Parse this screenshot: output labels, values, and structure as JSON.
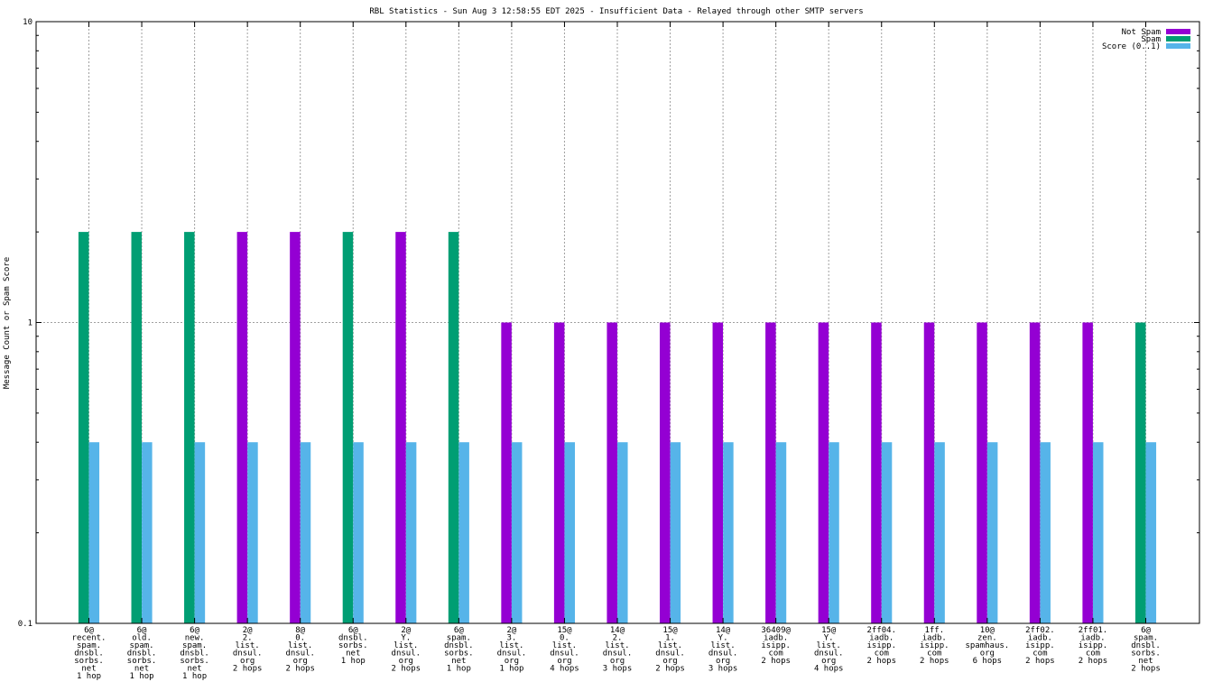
{
  "chart_data": {
    "type": "bar",
    "title": "RBL Statistics - Sun Aug  3 12:58:55 EDT 2025 - Insufficient Data - Relayed through other SMTP servers",
    "xlabel": "",
    "ylabel": "Message Count or Spam Score",
    "y_scale": "log",
    "ylim": [
      0.1,
      10
    ],
    "yticks": [
      "0.1",
      "1",
      "10"
    ],
    "grid": true,
    "legend_position": "top-right",
    "categories": [
      [
        "6@",
        "recent.",
        "spam.",
        "dnsbl.",
        "sorbs.",
        "net",
        "1 hop"
      ],
      [
        "6@",
        "old.",
        "spam.",
        "dnsbl.",
        "sorbs.",
        "net",
        "1 hop"
      ],
      [
        "6@",
        "new.",
        "spam.",
        "dnsbl.",
        "sorbs.",
        "net",
        "1 hop"
      ],
      [
        "2@",
        "2.",
        "list.",
        "dnsul.",
        "org",
        "2 hops"
      ],
      [
        "8@",
        "0.",
        "list.",
        "dnsul.",
        "org",
        "2 hops"
      ],
      [
        "6@",
        "dnsbl.",
        "sorbs.",
        "net",
        "1 hop"
      ],
      [
        "2@",
        "Y.",
        "list.",
        "dnsul.",
        "org",
        "2 hops"
      ],
      [
        "6@",
        "spam.",
        "dnsbl.",
        "sorbs.",
        "net",
        "1 hop"
      ],
      [
        "2@",
        "3.",
        "list.",
        "dnsul.",
        "org",
        "1 hop"
      ],
      [
        "15@",
        "0.",
        "list.",
        "dnsul.",
        "org",
        "4 hops"
      ],
      [
        "14@",
        "2.",
        "list.",
        "dnsul.",
        "org",
        "3 hops"
      ],
      [
        "15@",
        "1.",
        "list.",
        "dnsul.",
        "org",
        "2 hops"
      ],
      [
        "14@",
        "Y.",
        "list.",
        "dnsul.",
        "org",
        "3 hops"
      ],
      [
        "36409@",
        "iadb.",
        "isipp.",
        "com",
        "2 hops"
      ],
      [
        "15@",
        "Y.",
        "list.",
        "dnsul.",
        "org",
        "4 hops"
      ],
      [
        "2ff04.",
        "iadb.",
        "isipp.",
        "com",
        "2 hops"
      ],
      [
        "1ff.",
        "iadb.",
        "isipp.",
        "com",
        "2 hops"
      ],
      [
        "10@",
        "zen.",
        "spamhaus.",
        "org",
        "6 hops"
      ],
      [
        "2ff02.",
        "iadb.",
        "isipp.",
        "com",
        "2 hops"
      ],
      [
        "2ff01.",
        "iadb.",
        "isipp.",
        "com",
        "2 hops"
      ],
      [
        "6@",
        "spam.",
        "dnsbl.",
        "sorbs.",
        "net",
        "2 hops"
      ]
    ],
    "series": [
      {
        "name": "Not Spam",
        "color": "#9400d3",
        "values": [
          null,
          null,
          null,
          2,
          2,
          null,
          2,
          null,
          1,
          1,
          1,
          1,
          1,
          1,
          1,
          1,
          1,
          1,
          1,
          1,
          null
        ]
      },
      {
        "name": "Spam",
        "color": "#009e73",
        "values": [
          2,
          2,
          2,
          null,
          null,
          2,
          null,
          2,
          null,
          null,
          null,
          null,
          null,
          null,
          null,
          null,
          null,
          null,
          null,
          null,
          1
        ]
      },
      {
        "name": "Score (0..1)",
        "color": "#56b4e9",
        "values": [
          0.4,
          0.4,
          0.4,
          0.4,
          0.4,
          0.4,
          0.4,
          0.4,
          0.4,
          0.4,
          0.4,
          0.4,
          0.4,
          0.4,
          0.4,
          0.4,
          0.4,
          0.4,
          0.4,
          0.4,
          0.4
        ]
      }
    ]
  }
}
